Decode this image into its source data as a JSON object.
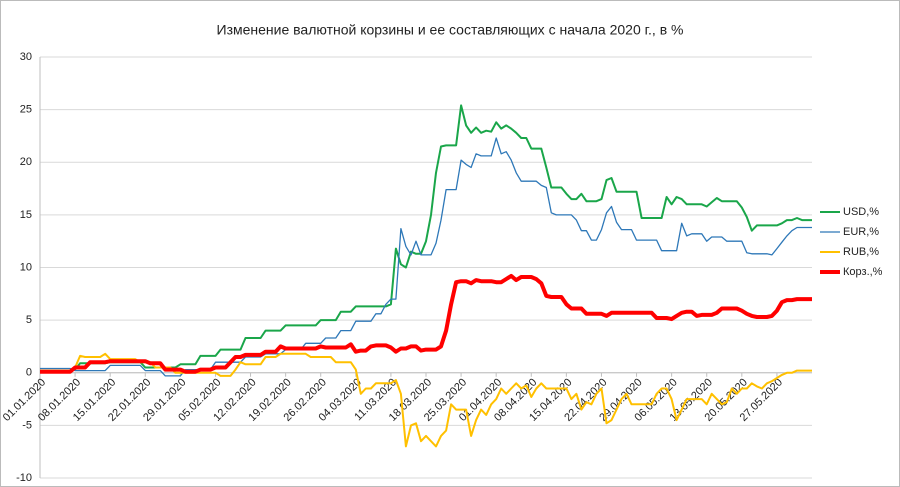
{
  "chart_data": {
    "type": "line",
    "title": "Изменение  валютной  корзины  и ее  составляющих  с  начала  2020 г., в %",
    "categories": [
      "01.01.2020",
      null,
      null,
      null,
      null,
      null,
      null,
      "08.01.2020",
      null,
      null,
      null,
      null,
      null,
      null,
      "15.01.2020",
      null,
      null,
      null,
      null,
      null,
      null,
      "22.01.2020",
      null,
      null,
      null,
      null,
      null,
      null,
      "29.01.2020",
      null,
      null,
      null,
      null,
      null,
      null,
      "05.02.2020",
      null,
      null,
      null,
      null,
      null,
      null,
      "12.02.2020",
      null,
      null,
      null,
      null,
      null,
      null,
      "19.02.2020",
      null,
      null,
      null,
      null,
      null,
      null,
      "26.02.2020",
      null,
      null,
      null,
      null,
      null,
      null,
      "04.03.2020",
      null,
      null,
      null,
      null,
      null,
      null,
      "11.03.2020",
      null,
      null,
      null,
      null,
      null,
      null,
      "18.03.2020",
      null,
      null,
      null,
      null,
      null,
      null,
      "25.03.2020",
      null,
      null,
      null,
      null,
      null,
      null,
      "01.04.2020",
      null,
      null,
      null,
      null,
      null,
      null,
      "08.04.2020",
      null,
      null,
      null,
      null,
      null,
      null,
      "15.04.2020",
      null,
      null,
      null,
      null,
      null,
      null,
      "22.04.2020",
      null,
      null,
      null,
      null,
      null,
      null,
      "29.04.2020",
      null,
      null,
      null,
      null,
      null,
      null,
      "06.05.2020",
      null,
      null,
      null,
      null,
      null,
      null,
      "13.05.2020",
      null,
      null,
      null,
      null,
      null,
      null,
      "20.05.2020",
      null,
      null,
      null,
      null,
      null,
      null,
      "27.05.2020",
      null,
      null,
      null,
      null,
      null,
      null,
      null
    ],
    "series": [
      {
        "name": "USD,%",
        "color": "#1aa64a",
        "width": 2,
        "values": [
          0.2,
          0.2,
          0.2,
          0.2,
          0.2,
          0.2,
          0.2,
          0.3,
          0.9,
          0.9,
          0.9,
          0.9,
          0.9,
          0.9,
          1.0,
          1.0,
          1.0,
          1.0,
          1.0,
          1.0,
          1.0,
          0.5,
          0.5,
          0.5,
          0.5,
          0.5,
          0.5,
          0.5,
          0.8,
          0.8,
          0.8,
          0.8,
          1.6,
          1.6,
          1.6,
          1.6,
          2.2,
          2.2,
          2.2,
          2.2,
          2.2,
          3.3,
          3.3,
          3.3,
          3.3,
          4.0,
          4.0,
          4.0,
          4.0,
          4.5,
          4.5,
          4.5,
          4.5,
          4.5,
          4.5,
          4.5,
          5.0,
          5.0,
          5.0,
          5.0,
          5.8,
          5.8,
          5.8,
          6.3,
          6.3,
          6.3,
          6.3,
          6.3,
          6.3,
          6.3,
          6.5,
          11.8,
          10.3,
          10.0,
          11.5,
          11.3,
          11.3,
          12.5,
          15,
          19,
          21.5,
          21.6,
          21.6,
          21.6,
          25.4,
          23.5,
          22.8,
          23.3,
          22.8,
          23,
          22.9,
          23.8,
          23.2,
          23.5,
          23.2,
          22.8,
          22.3,
          22.3,
          21.3,
          21.3,
          21.3,
          19.5,
          17.6,
          17.6,
          17.6,
          17.0,
          16.5,
          16.5,
          17.0,
          16.3,
          16.3,
          16.3,
          16.5,
          18.3,
          18.5,
          17.2,
          17.2,
          17.2,
          17.2,
          17.2,
          14.7,
          14.7,
          14.7,
          14.7,
          14.7,
          16.7,
          16.0,
          16.7,
          16.5,
          16.0,
          16.0,
          16.0,
          16.0,
          15.8,
          16.2,
          16.6,
          16.3,
          16.3,
          16.3,
          16.3,
          15.7,
          14.8,
          13.5,
          14.0,
          14.0,
          14.0,
          14.0,
          14.0,
          14.2,
          14.5,
          14.5,
          14.7,
          14.5,
          14.5,
          14.5
        ]
      },
      {
        "name": "EUR,%",
        "color": "#2e78b8",
        "width": 1.3,
        "values": [
          0.4,
          0.4,
          0.4,
          0.4,
          0.4,
          0.4,
          0.4,
          0.2,
          0.2,
          0.2,
          0.2,
          0.2,
          0.2,
          0.2,
          0.7,
          0.7,
          0.7,
          0.7,
          0.7,
          0.7,
          0.7,
          0.2,
          0.2,
          0.2,
          0.2,
          -0.3,
          -0.3,
          -0.3,
          -0.3,
          0.3,
          0.3,
          0.3,
          0.3,
          0.3,
          0.3,
          1.0,
          1.0,
          1.0,
          1.0,
          1.0,
          1.0,
          1.5,
          1.5,
          1.5,
          1.5,
          1.8,
          1.8,
          1.8,
          1.8,
          2.2,
          2.2,
          2.2,
          2.2,
          2.8,
          2.8,
          2.8,
          2.8,
          3.3,
          3.3,
          3.3,
          4.0,
          4.0,
          4.0,
          4.9,
          4.9,
          4.9,
          4.9,
          5.6,
          5.6,
          6.5,
          7.0,
          7.0,
          13.7,
          12.0,
          11.2,
          12.5,
          11.2,
          11.2,
          11.2,
          12.3,
          14.5,
          17.4,
          17.4,
          17.4,
          20.2,
          19.8,
          19.5,
          20.8,
          20.6,
          20.6,
          20.6,
          22.3,
          20.8,
          21.0,
          20.2,
          19.0,
          18.2,
          18.2,
          18.2,
          18.2,
          17.8,
          17.6,
          15.2,
          15.0,
          15.0,
          15.0,
          15.0,
          14.5,
          13.5,
          13.5,
          12.6,
          12.6,
          13.6,
          15.2,
          15.8,
          14.3,
          13.6,
          13.6,
          13.6,
          12.6,
          12.6,
          12.6,
          12.6,
          12.6,
          11.6,
          11.6,
          11.6,
          11.6,
          14.2,
          13.0,
          13.2,
          13.2,
          13.2,
          12.5,
          12.9,
          12.9,
          12.9,
          12.5,
          12.5,
          12.5,
          12.5,
          11.4,
          11.3,
          11.3,
          11.3,
          11.3,
          11.2,
          11.8,
          12.4,
          13.0,
          13.5,
          13.8,
          13.8,
          13.8,
          13.8
        ]
      },
      {
        "name": "RUB,%",
        "color": "#ffc000",
        "width": 2,
        "values": [
          0.2,
          0.2,
          0.2,
          0.2,
          0.2,
          0.2,
          0.2,
          0.5,
          1.6,
          1.5,
          1.5,
          1.5,
          1.5,
          1.8,
          1.3,
          1.3,
          1.3,
          1.3,
          1.3,
          1.3,
          1.0,
          1.0,
          1.0,
          0.5,
          0.5,
          0.5,
          0.5,
          0.0,
          0.0,
          0.0,
          0.0,
          0.0,
          0.0,
          0.0,
          0.0,
          0.0,
          -0.3,
          -0.3,
          -0.3,
          0.3,
          1.0,
          0.8,
          0.8,
          0.8,
          0.8,
          1.5,
          1.5,
          1.5,
          1.8,
          1.8,
          1.8,
          1.8,
          1.8,
          1.8,
          1.5,
          1.5,
          1.5,
          1.5,
          1.5,
          1.0,
          1.0,
          1.0,
          1.0,
          0.3,
          -2.0,
          -1.5,
          -1.5,
          -1.0,
          -1.0,
          -1.0,
          -1.0,
          -0.7,
          -2.0,
          -7.0,
          -5.0,
          -4.8,
          -6.5,
          -6.0,
          -6.5,
          -7.0,
          -6.0,
          -5.5,
          -3.0,
          -3.5,
          -3.5,
          -3.5,
          -6.0,
          -4.5,
          -3.5,
          -4.0,
          -3.0,
          -2.5,
          -1.5,
          -2.0,
          -1.5,
          -1.0,
          -1.5,
          -1.2,
          -2.3,
          -1.5,
          -1.0,
          -1.5,
          -1.5,
          -1.5,
          -1.5,
          -1.5,
          -2.5,
          -2.0,
          -3.5,
          -2.8,
          -3.0,
          -2.0,
          -1.5,
          -4.8,
          -4.5,
          -3.5,
          -2.5,
          -2.0,
          -3.0,
          -3.0,
          -3.0,
          -3.0,
          -3.0,
          -2.0,
          -1.5,
          -1.5,
          -2.5,
          -4.5,
          -3.5,
          -2.5,
          -2.5,
          -2.5,
          -2.5,
          -3.0,
          -2.0,
          -2.5,
          -3.0,
          -2.8,
          -1.5,
          -2.0,
          -1.5,
          -1.5,
          -1.0,
          -1.3,
          -1.5,
          -1.0,
          -0.8,
          -0.5,
          -0.2,
          0.0,
          0.0,
          0.2,
          0.2,
          0.2,
          0.2
        ]
      },
      {
        "name": "Корз.,%",
        "color": "#ff0000",
        "width": 4,
        "values": [
          0.1,
          0.1,
          0.1,
          0.1,
          0.1,
          0.1,
          0.1,
          0.5,
          0.5,
          0.5,
          1.0,
          1.0,
          1.0,
          1.0,
          1.1,
          1.1,
          1.1,
          1.1,
          1.1,
          1.1,
          1.1,
          1.1,
          0.9,
          0.9,
          0.9,
          0.3,
          0.3,
          0.3,
          0.3,
          0.1,
          0.1,
          0.1,
          0.3,
          0.3,
          0.3,
          0.5,
          0.5,
          0.5,
          1.0,
          1.5,
          1.5,
          1.7,
          1.7,
          1.7,
          1.7,
          2.0,
          2.0,
          2.0,
          2.5,
          2.3,
          2.3,
          2.3,
          2.3,
          2.3,
          2.3,
          2.3,
          2.5,
          2.4,
          2.4,
          2.4,
          2.4,
          2.4,
          2.7,
          2.0,
          2.1,
          2.1,
          2.5,
          2.6,
          2.6,
          2.6,
          2.4,
          2.0,
          2.3,
          2.3,
          2.5,
          2.5,
          2.1,
          2.2,
          2.2,
          2.2,
          2.5,
          4.0,
          6.5,
          8.6,
          8.7,
          8.7,
          8.5,
          8.8,
          8.7,
          8.7,
          8.7,
          8.6,
          8.6,
          8.9,
          9.2,
          8.8,
          9.1,
          9.1,
          9.1,
          8.9,
          8.5,
          7.3,
          7.2,
          7.2,
          7.2,
          6.5,
          6.1,
          6.1,
          6.1,
          5.6,
          5.6,
          5.6,
          5.6,
          5.4,
          5.7,
          5.7,
          5.7,
          5.7,
          5.7,
          5.7,
          5.7,
          5.7,
          5.7,
          5.2,
          5.2,
          5.2,
          5.1,
          5.4,
          5.7,
          5.8,
          5.8,
          5.4,
          5.5,
          5.5,
          5.5,
          5.7,
          6.1,
          6.1,
          6.1,
          6.1,
          5.9,
          5.6,
          5.4,
          5.3,
          5.3,
          5.3,
          5.4,
          5.9,
          6.7,
          6.9,
          6.9,
          7.0,
          7.0,
          7.0,
          7.0
        ]
      }
    ],
    "ylim": [
      -10,
      30
    ],
    "yticks": [
      -10,
      -5,
      0,
      5,
      10,
      15,
      20,
      25,
      30
    ],
    "grid": true,
    "legend": "right"
  }
}
